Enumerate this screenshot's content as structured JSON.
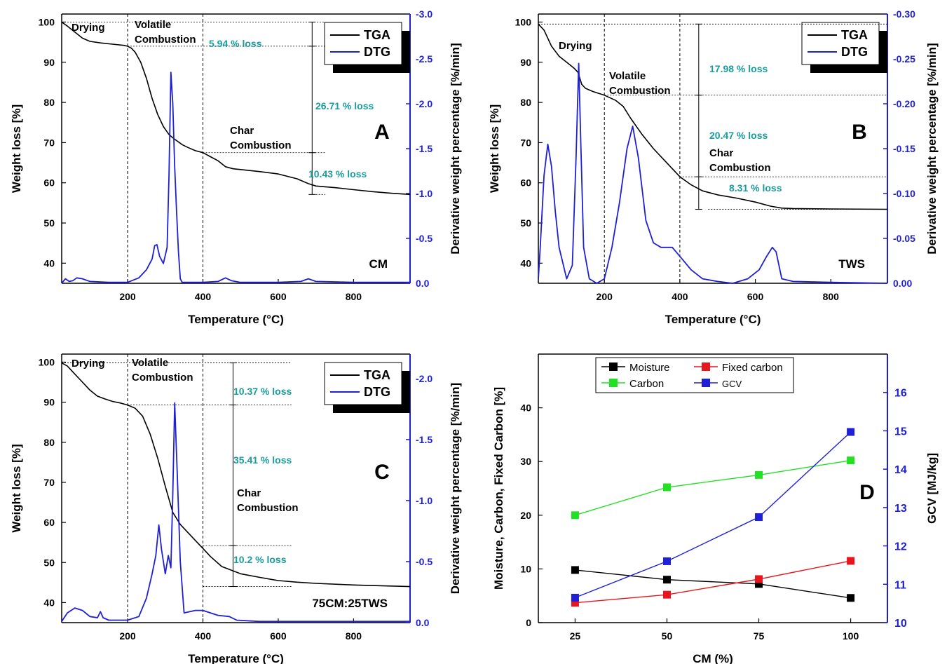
{
  "chart_data": [
    {
      "type": "line",
      "panel_label": "A",
      "sample_label": "CM",
      "xlabel": "Temperature (°C)",
      "ylabel": "Weight loss [%]",
      "y2label": "Derivative weight percentage [%/min]",
      "xlim": [
        25,
        950
      ],
      "ylim": [
        35,
        102
      ],
      "y2lim": [
        0.0,
        -3.0
      ],
      "x_ticks": [
        "200",
        "400",
        "600",
        "800"
      ],
      "y_ticks": [
        "40",
        "50",
        "60",
        "70",
        "80",
        "90",
        "100"
      ],
      "y2_ticks": [
        "0.0",
        "-0.5",
        "-1.0",
        "-1.5",
        "-2.0",
        "-2.5",
        "-3.0"
      ],
      "legend": [
        "TGA",
        "DTG"
      ],
      "regions": [
        "Drying",
        "Volatile Combustion",
        "Char Combustion"
      ],
      "losses": [
        "5.94 % loss",
        "26.71 % loss",
        "10.43 % loss"
      ],
      "series": [
        {
          "name": "TGA",
          "color": "#000000",
          "axis": "left",
          "x": [
            25,
            40,
            60,
            80,
            100,
            130,
            160,
            190,
            200,
            210,
            220,
            235,
            250,
            265,
            280,
            295,
            310,
            320,
            330,
            345,
            360,
            380,
            400,
            420,
            440,
            460,
            480,
            500,
            550,
            600,
            650,
            680,
            700,
            750,
            800,
            850,
            900,
            950
          ],
          "y": [
            100,
            99,
            97.5,
            96,
            95.2,
            94.8,
            94.5,
            94.2,
            94,
            93.5,
            92.5,
            90,
            86,
            81,
            77,
            74,
            72,
            71.2,
            70.5,
            69.5,
            68.8,
            68,
            67.5,
            66.5,
            65.5,
            64,
            63.5,
            63.3,
            62.8,
            62.2,
            61,
            59.8,
            59.2,
            58.8,
            58.3,
            57.8,
            57.4,
            57.1
          ]
        },
        {
          "name": "DTG",
          "color": "#1f1fd6",
          "axis": "right",
          "x": [
            25,
            35,
            45,
            55,
            65,
            80,
            100,
            150,
            200,
            230,
            250,
            265,
            272,
            278,
            285,
            295,
            305,
            310,
            315,
            320,
            325,
            330,
            335,
            340,
            345,
            360,
            400,
            440,
            460,
            475,
            500,
            600,
            660,
            680,
            700,
            800,
            950
          ],
          "y": [
            0,
            -0.05,
            -0.02,
            -0.03,
            -0.06,
            -0.05,
            -0.02,
            -0.01,
            -0.01,
            -0.06,
            -0.15,
            -0.27,
            -0.42,
            -0.43,
            -0.3,
            -0.22,
            -0.4,
            -1.2,
            -2.35,
            -2.0,
            -1.3,
            -0.8,
            -0.35,
            -0.05,
            -0.01,
            -0.01,
            -0.01,
            -0.02,
            -0.06,
            -0.03,
            -0.01,
            -0.01,
            -0.02,
            -0.05,
            -0.02,
            -0.01,
            -0.01
          ]
        }
      ]
    },
    {
      "type": "line",
      "panel_label": "B",
      "sample_label": "TWS",
      "xlabel": "Temperature (°C)",
      "ylabel": "Weight loss [%]",
      "y2label": "Derivative weight percentage [%/min]",
      "xlim": [
        25,
        950
      ],
      "ylim": [
        35,
        102
      ],
      "y2lim": [
        0.0,
        -0.3
      ],
      "x_ticks": [
        "200",
        "400",
        "600",
        "800"
      ],
      "y_ticks": [
        "40",
        "50",
        "60",
        "70",
        "80",
        "90",
        "100"
      ],
      "y2_ticks": [
        "0.00",
        "-0.05",
        "-0.10",
        "-0.15",
        "-0.20",
        "-0.25",
        "-0.30"
      ],
      "legend": [
        "TGA",
        "DTG"
      ],
      "regions": [
        "Drying",
        "Volatile Combustion",
        "Char Combustion"
      ],
      "losses": [
        "17.98 % loss",
        "20.47 % loss",
        "8.31 % loss"
      ],
      "series": [
        {
          "name": "TGA",
          "color": "#000000",
          "axis": "left",
          "x": [
            25,
            40,
            60,
            80,
            100,
            120,
            130,
            140,
            150,
            170,
            200,
            230,
            250,
            270,
            300,
            330,
            360,
            400,
            430,
            460,
            500,
            550,
            600,
            640,
            670,
            700,
            800,
            950
          ],
          "y": [
            99.5,
            98,
            94,
            91.5,
            90,
            88.5,
            87.5,
            84.5,
            83.5,
            82.7,
            81.8,
            80.5,
            79,
            76,
            72,
            68.5,
            65.5,
            61.5,
            59.5,
            58,
            57,
            56.2,
            55.2,
            54.2,
            53.7,
            53.6,
            53.5,
            53.4
          ]
        },
        {
          "name": "DTG",
          "color": "#1f1fd6",
          "axis": "right",
          "x": [
            25,
            30,
            40,
            50,
            60,
            70,
            80,
            100,
            115,
            125,
            132,
            138,
            145,
            160,
            180,
            200,
            220,
            240,
            260,
            275,
            290,
            310,
            330,
            350,
            380,
            400,
            430,
            460,
            500,
            540,
            580,
            610,
            630,
            645,
            655,
            670,
            700,
            800,
            950
          ],
          "y": [
            -0.005,
            -0.04,
            -0.12,
            -0.155,
            -0.13,
            -0.08,
            -0.04,
            -0.005,
            -0.02,
            -0.14,
            -0.245,
            -0.15,
            -0.04,
            -0.005,
            0,
            -0.005,
            -0.04,
            -0.09,
            -0.15,
            -0.175,
            -0.14,
            -0.07,
            -0.045,
            -0.04,
            -0.04,
            -0.03,
            -0.015,
            -0.005,
            -0.002,
            0,
            -0.005,
            -0.015,
            -0.03,
            -0.04,
            -0.035,
            -0.005,
            -0.002,
            -0.001,
            0
          ]
        }
      ]
    },
    {
      "type": "line",
      "panel_label": "C",
      "sample_label": "75CM:25TWS",
      "xlabel": "Temperature (°C)",
      "ylabel": "Weight loss [%]",
      "y2label": "Derivative weight percentage [%/min]",
      "xlim": [
        25,
        950
      ],
      "ylim": [
        35,
        102
      ],
      "y2lim": [
        0.0,
        -2.2
      ],
      "x_ticks": [
        "200",
        "400",
        "600",
        "800"
      ],
      "y_ticks": [
        "40",
        "50",
        "60",
        "70",
        "80",
        "90",
        "100"
      ],
      "y2_ticks": [
        "0.0",
        "-0.5",
        "-1.0",
        "-1.5",
        "-2.0"
      ],
      "legend": [
        "TGA",
        "DTG"
      ],
      "regions": [
        "Drying",
        "Volatile Combustion",
        "Char Combustion"
      ],
      "losses": [
        "10.37 % loss",
        "35.41 % loss",
        "10.2 % loss"
      ],
      "series": [
        {
          "name": "TGA",
          "color": "#000000",
          "axis": "left",
          "x": [
            25,
            40,
            60,
            80,
            100,
            120,
            140,
            160,
            180,
            200,
            220,
            240,
            260,
            280,
            300,
            320,
            340,
            360,
            380,
            400,
            420,
            450,
            500,
            550,
            600,
            650,
            700,
            800,
            950
          ],
          "y": [
            99.8,
            99,
            97,
            95,
            93,
            91.5,
            90.8,
            90.2,
            89.8,
            89.3,
            88.5,
            86.5,
            82,
            76,
            69,
            62.5,
            59.5,
            57.5,
            55.5,
            53.5,
            51.5,
            49,
            47.2,
            46.3,
            45.5,
            45.1,
            44.8,
            44.4,
            44
          ]
        },
        {
          "name": "DTG",
          "color": "#1f1fd6",
          "axis": "right",
          "x": [
            25,
            40,
            60,
            80,
            100,
            120,
            128,
            135,
            150,
            200,
            230,
            250,
            265,
            275,
            283,
            290,
            300,
            308,
            315,
            320,
            325,
            332,
            340,
            350,
            380,
            400,
            440,
            470,
            490,
            550,
            700,
            950
          ],
          "y": [
            -0.01,
            -0.08,
            -0.12,
            -0.1,
            -0.05,
            -0.04,
            -0.09,
            -0.04,
            -0.02,
            -0.02,
            -0.05,
            -0.2,
            -0.4,
            -0.55,
            -0.8,
            -0.6,
            -0.4,
            -0.55,
            -0.45,
            -1.05,
            -1.8,
            -1.2,
            -0.5,
            -0.08,
            -0.1,
            -0.1,
            -0.06,
            -0.05,
            -0.02,
            -0.01,
            -0.01,
            -0.01
          ]
        }
      ]
    },
    {
      "type": "line",
      "panel_label": "D",
      "xlabel": "CM (%)",
      "ylabel": "Moisture, Carbon, Fixed Carbon [%]",
      "y2label": "GCV [MJ/kg]",
      "xlim": [
        15,
        110
      ],
      "ylim": [
        0,
        50
      ],
      "y2lim": [
        10,
        17
      ],
      "x_ticks": [
        "25",
        "50",
        "75",
        "100"
      ],
      "y_ticks": [
        "0",
        "10",
        "20",
        "30",
        "40"
      ],
      "y2_ticks": [
        "10",
        "11",
        "12",
        "13",
        "14",
        "15",
        "16"
      ],
      "categories": [
        25,
        50,
        75,
        100
      ],
      "series": [
        {
          "name": "Moisture",
          "color": "#000000",
          "axis": "left",
          "values": [
            9.8,
            8.0,
            7.2,
            4.6
          ]
        },
        {
          "name": "Fixed carbon",
          "color": "#e8141e",
          "axis": "left",
          "values": [
            3.7,
            5.2,
            8.1,
            11.5
          ]
        },
        {
          "name": "Carbon",
          "color": "#22e022",
          "axis": "left",
          "values": [
            20.0,
            25.2,
            27.5,
            30.2
          ]
        },
        {
          "name": "GCV",
          "color": "#1f1fd6",
          "axis": "right",
          "values": [
            10.65,
            11.6,
            12.75,
            14.97
          ]
        }
      ]
    }
  ]
}
